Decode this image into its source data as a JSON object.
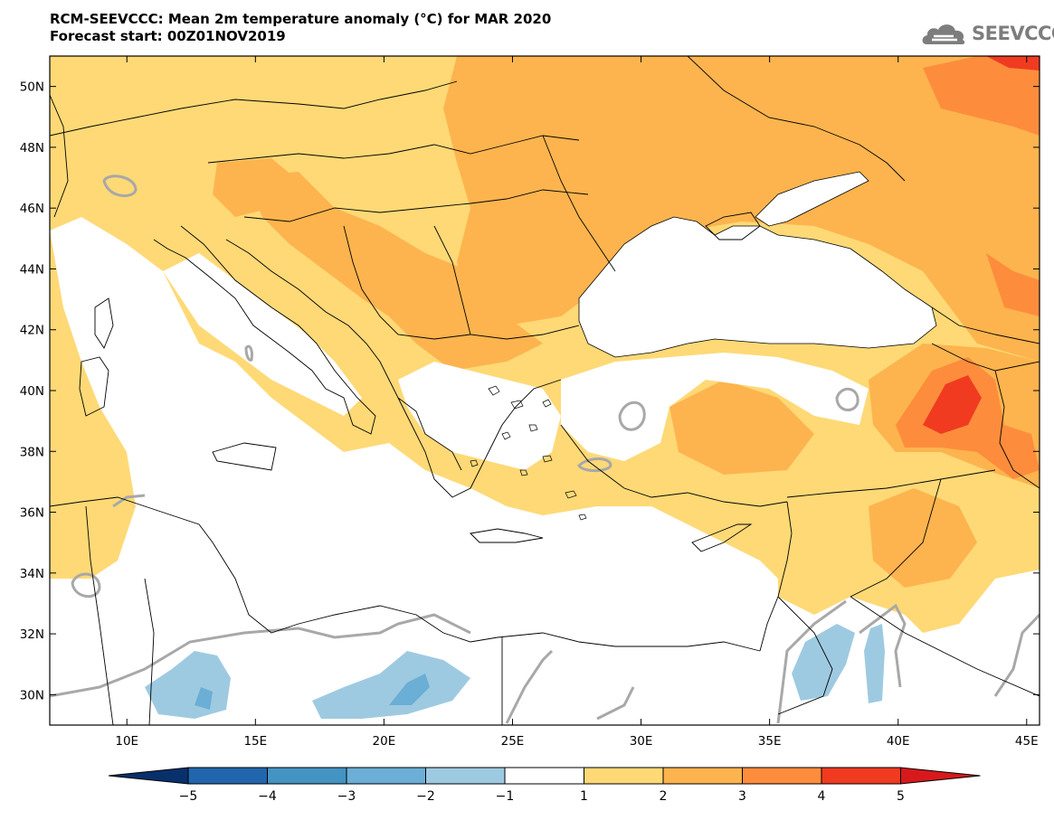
{
  "title": {
    "line1": "RCM-SEEVCCC: Mean 2m temperature anomaly (°C) for MAR 2020",
    "line2": "Forecast start: 00Z01NOV2019"
  },
  "logo": {
    "text": "SEEVCCC",
    "icon": "cloud-logo-icon"
  },
  "map": {
    "lat_labels": [
      "50N",
      "48N",
      "46N",
      "44N",
      "42N",
      "40N",
      "38N",
      "36N",
      "34N",
      "32N",
      "30N"
    ],
    "lon_labels": [
      "10E",
      "15E",
      "20E",
      "25E",
      "30E",
      "35E",
      "40E",
      "45E"
    ],
    "lon_range": [
      7,
      45.5
    ],
    "lat_range": [
      29,
      51
    ]
  },
  "colorbar": {
    "ticks": [
      "−5",
      "−4",
      "−3",
      "−2",
      "−1",
      "1",
      "2",
      "3",
      "4",
      "5"
    ],
    "colors": [
      "#08306b",
      "#2166ac",
      "#4393c3",
      "#6baed6",
      "#9ecae1",
      "#ffffff",
      "#fed976",
      "#fdb44e",
      "#fd8d3c",
      "#f03b20",
      "#d7191c"
    ]
  }
}
